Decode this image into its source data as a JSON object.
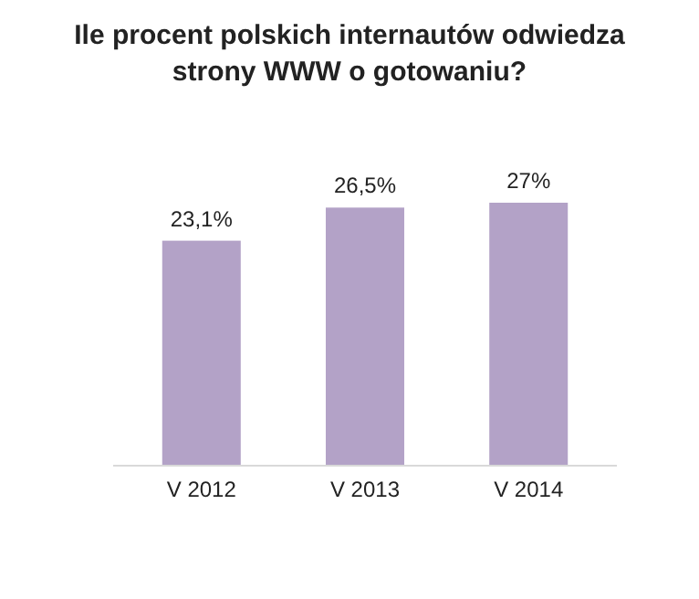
{
  "chart_data": {
    "type": "bar",
    "title": "Ile procent polskich internautów odwiedza\nstrony WWW o gotowaniu?",
    "categories": [
      "V 2012",
      "V 2013",
      "V 2014"
    ],
    "values": [
      23.1,
      26.5,
      27
    ],
    "value_labels": [
      "23,1%",
      "26,5%",
      "27%"
    ],
    "color": "#b3a2c7"
  }
}
